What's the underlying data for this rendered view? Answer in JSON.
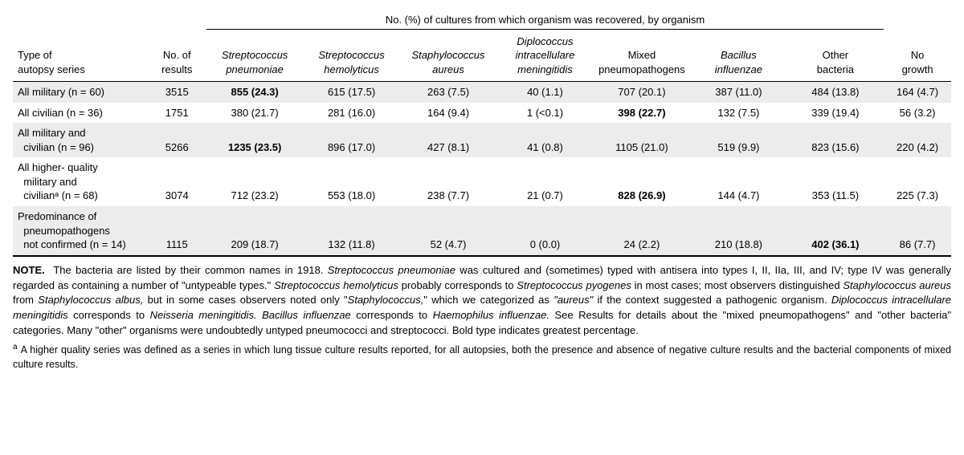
{
  "spanner": "No. (%) of cultures from which organism was recovered, by organism",
  "headers": {
    "type": "Type of\nautopsy series",
    "n": "No. of\nresults",
    "c1": "Streptococcus\npneumoniae",
    "c2": "Streptococcus\nhemolyticus",
    "c3": "Staphylococcus\naureus",
    "c4": "Diplococcus\nintracellulare\nmeningitidis",
    "c5": "Mixed\npneumopathogens",
    "c6": "Bacillus\ninfluenzae",
    "c7": "Other\nbacteria",
    "c8": "No\ngrowth"
  },
  "rows": [
    {
      "label": "All military (n = 60)",
      "n": "3515",
      "c1": {
        "v": "855 (24.3)",
        "bold": true
      },
      "c2": {
        "v": "615 (17.5)"
      },
      "c3": {
        "v": "263 (7.5)"
      },
      "c4": {
        "v": "40 (1.1)"
      },
      "c5": {
        "v": "707 (20.1)"
      },
      "c6": {
        "v": "387 (11.0)"
      },
      "c7": {
        "v": "484 (13.8)"
      },
      "c8": {
        "v": "164 (4.7)"
      }
    },
    {
      "label": "All civilian (n = 36)",
      "n": "1751",
      "c1": {
        "v": "380 (21.7)"
      },
      "c2": {
        "v": "281 (16.0)"
      },
      "c3": {
        "v": "164 (9.4)"
      },
      "c4": {
        "v": "1 (<0.1)"
      },
      "c5": {
        "v": "398 (22.7)",
        "bold": true
      },
      "c6": {
        "v": "132 (7.5)"
      },
      "c7": {
        "v": "339 (19.4)"
      },
      "c8": {
        "v": "56 (3.2)"
      }
    },
    {
      "label": "All military and\n  civilian (n = 96)",
      "n": "5266",
      "c1": {
        "v": "1235 (23.5)",
        "bold": true
      },
      "c2": {
        "v": "896 (17.0)"
      },
      "c3": {
        "v": "427 (8.1)"
      },
      "c4": {
        "v": "41 (0.8)"
      },
      "c5": {
        "v": "1105 (21.0)"
      },
      "c6": {
        "v": "519 (9.9)"
      },
      "c7": {
        "v": "823 (15.6)"
      },
      "c8": {
        "v": "220 (4.2)"
      }
    },
    {
      "label": "All higher- quality\n  military and\n  civilianᵃ (n = 68)",
      "n": "3074",
      "c1": {
        "v": "712 (23.2)"
      },
      "c2": {
        "v": "553 (18.0)"
      },
      "c3": {
        "v": "238 (7.7)"
      },
      "c4": {
        "v": "21 (0.7)"
      },
      "c5": {
        "v": "828 (26.9)",
        "bold": true
      },
      "c6": {
        "v": "144 (4.7)"
      },
      "c7": {
        "v": "353 (11.5)"
      },
      "c8": {
        "v": "225 (7.3)"
      }
    },
    {
      "label": "Predominance of\n  pneumopathogens\n  not confirmed (n = 14)",
      "n": "1115",
      "c1": {
        "v": "209 (18.7)"
      },
      "c2": {
        "v": "132 (11.8)"
      },
      "c3": {
        "v": "52 (4.7)"
      },
      "c4": {
        "v": "0 (0.0)"
      },
      "c5": {
        "v": "24 (2.2)"
      },
      "c6": {
        "v": "210 (18.8)"
      },
      "c7": {
        "v": "402 (36.1)",
        "bold": true
      },
      "c8": {
        "v": "86 (7.7)"
      }
    }
  ],
  "note_label": "NOTE.",
  "note_parts": {
    "p1": "The bacteria are listed by their common names in 1918. ",
    "i1": "Streptococcus pneumoniae",
    "p2": " was cultured and (sometimes) typed with antisera into types I, II, IIa, III, and IV; type IV was generally regarded as containing a number of \"untypeable types.\" ",
    "i2": "Streptococcus hemolyticus",
    "p3": " probably corresponds to ",
    "i3": "Streptococcus pyogenes",
    "p4": " in most cases; most observers distinguished ",
    "i4": "Staphylococcus aureus",
    "p5": " from ",
    "i5": "Staphylococcus albus,",
    "p6": " but in some cases observers noted only \"",
    "i6": "Staphylococcus,",
    "p7": "\" which we categorized as ",
    "i7": "\"aureus\"",
    "p8": " if the context suggested a pathogenic organism. ",
    "i8": "Diplococcus intracellulare meningitidis",
    "p9": " corresponds to ",
    "i9": "Neisseria meningitidis. Bacillus influenzae",
    "p10": " corresponds to ",
    "i10": "Haemophilus influenzae.",
    "p11": " See Results for details about the \"mixed pneumopathogens\" and \"other bacteria\" categories. Many \"other\" organisms were undoubtedly untyped pneumococci and streptococci. Bold type indicates greatest percentage."
  },
  "footnote": "A higher quality series was defined as a series in which lung tissue culture results reported, for all autopsies, both the presence and absence of negative culture results and the bacterial components of mixed culture results."
}
